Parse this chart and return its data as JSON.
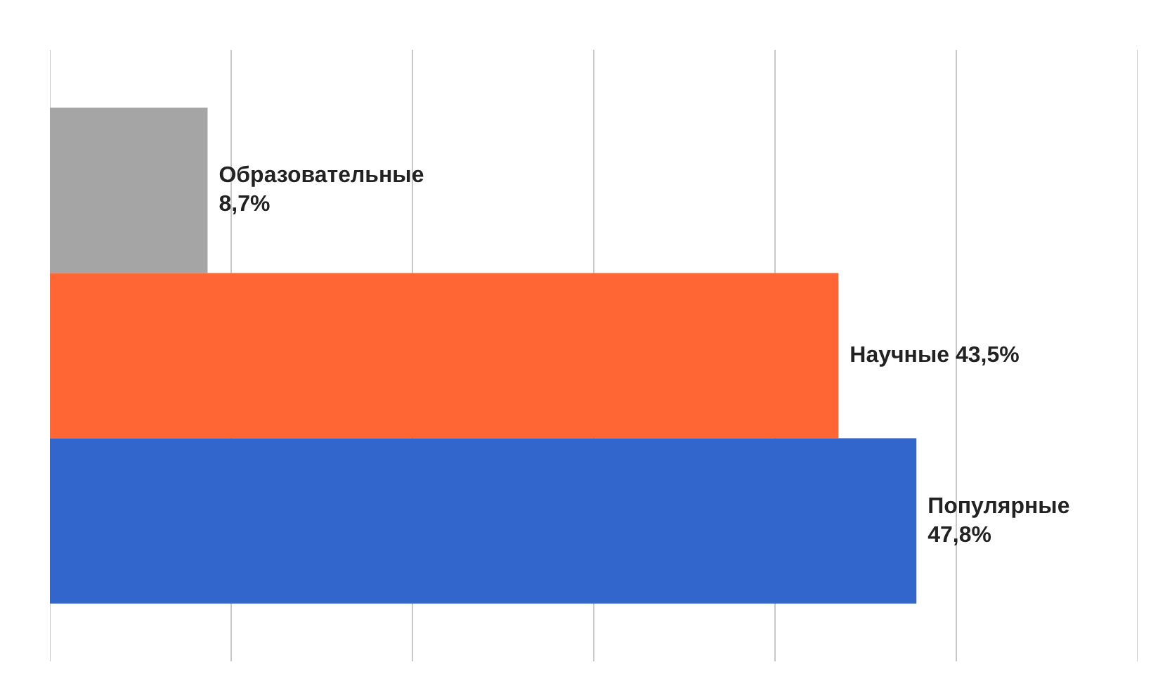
{
  "chart_data": {
    "type": "bar",
    "orientation": "horizontal",
    "categories": [
      null,
      null,
      null
    ],
    "values": [
      8.7,
      43.5,
      47.8
    ],
    "colors": [
      "#a5a5a5",
      "#ff6633",
      "#3366cc"
    ],
    "value_labels": [
      "Образовательные\n8,7%",
      "Научные 43,5%",
      "Популярные\n47,8%"
    ],
    "xlim": [
      0,
      60
    ],
    "xticks": [
      {
        "value": 0,
        "label": null
      },
      {
        "value": 10,
        "label": null
      },
      {
        "value": 20,
        "label": null
      },
      {
        "value": 30,
        "label": null
      },
      {
        "value": 40,
        "label": null
      },
      {
        "value": 50,
        "label": null
      },
      {
        "value": 60,
        "label": null
      }
    ],
    "grid": "x",
    "tick_labels": false
  }
}
